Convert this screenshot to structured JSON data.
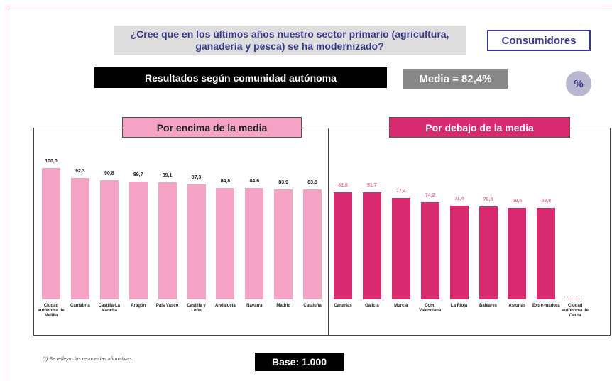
{
  "header": {
    "title": "¿Cree que en los últimos años nuestro sector primario (agricultura, ganadería y pesca) se ha modernizado?",
    "audience": "Consumidores",
    "subtitle": "Resultados según comunidad autónoma",
    "mean": "Media = 82,4%",
    "unit": "%"
  },
  "chart_data": {
    "type": "bar",
    "ylim": [
      0,
      100
    ],
    "panels": [
      {
        "label": "Por encima de la media",
        "color": "#f4a3c4",
        "label_color": "#222222",
        "categories": [
          "Ciudad autónoma de Melilla",
          "Cantabria",
          "Castilla-La Mancha",
          "Aragón",
          "País Vasco",
          "Castilla y León",
          "Andalucía",
          "Navarra",
          "Madrid",
          "Cataluña"
        ],
        "values": [
          100.0,
          92.3,
          90.8,
          89.7,
          89.1,
          87.3,
          84.8,
          84.6,
          83.9,
          83.8
        ],
        "value_labels": [
          "100,0",
          "92,3",
          "90,8",
          "89,7",
          "89,1",
          "87,3",
          "84,8",
          "84,6",
          "83,9",
          "83,8"
        ]
      },
      {
        "label": "Por debajo de la media",
        "color": "#d82a6e",
        "label_color": "#e07aa2",
        "categories": [
          "Canarias",
          "Galicia",
          "Murcia",
          "Com. Valenciana",
          "La Rioja",
          "Baleares",
          "Asturias",
          "Extre-madura",
          "Ciudad autónoma de Ceuta"
        ],
        "values": [
          81.8,
          81.7,
          77.4,
          74.2,
          71.4,
          70.8,
          69.6,
          69.8,
          null
        ],
        "value_labels": [
          "81,8",
          "81,7",
          "77,4",
          "74,2",
          "71,4",
          "70,8",
          "69,6",
          "69,8",
          null
        ]
      }
    ]
  },
  "footer": {
    "note": "(*) Se reflejan las respuestas afirmativas.",
    "base": "Base: 1.000"
  }
}
